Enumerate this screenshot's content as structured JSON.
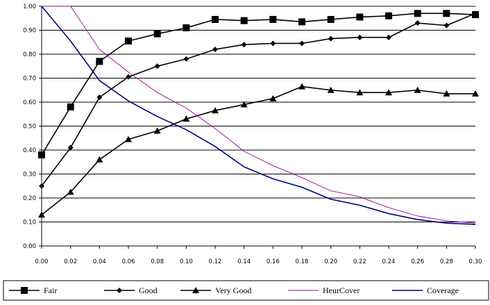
{
  "chart_data": {
    "type": "line",
    "title": "",
    "xlabel": "",
    "ylabel": "",
    "x": [
      0.0,
      0.02,
      0.04,
      0.06,
      0.08,
      0.1,
      0.12,
      0.14,
      0.16,
      0.18,
      0.2,
      0.22,
      0.24,
      0.26,
      0.28,
      0.3
    ],
    "x_tick_labels": [
      "0.00",
      "0.02",
      "0.04",
      "0.06",
      "0.08",
      "0.10",
      "0.12",
      "0.14",
      "0.16",
      "0.18",
      "0.20",
      "0.22",
      "0.24",
      "0.26",
      "0.28",
      "0.30"
    ],
    "ylim": [
      0,
      1
    ],
    "y_ticks": [
      0,
      0.1,
      0.2,
      0.3,
      0.4,
      0.5,
      0.6,
      0.7,
      0.8,
      0.9,
      1.0
    ],
    "y_tick_labels": [
      "0.00",
      "0.10",
      "0.20",
      "0.30",
      "0.40",
      "0.50",
      "0.60",
      "0.70",
      "0.80",
      "0.90",
      "1.00"
    ],
    "grid": "horizontal",
    "legend_position": "bottom",
    "series": [
      {
        "name": "Fair",
        "color": "#000000",
        "marker": "square",
        "values": [
          0.38,
          0.58,
          0.77,
          0.855,
          0.885,
          0.91,
          0.945,
          0.94,
          0.945,
          0.935,
          0.945,
          0.955,
          0.96,
          0.97,
          0.97,
          0.965
        ]
      },
      {
        "name": "Good",
        "color": "#000000",
        "marker": "diamond",
        "values": [
          0.25,
          0.41,
          0.62,
          0.705,
          0.75,
          0.78,
          0.82,
          0.84,
          0.845,
          0.845,
          0.865,
          0.87,
          0.87,
          0.93,
          0.92,
          0.97
        ]
      },
      {
        "name": "Very Good",
        "color": "#000000",
        "marker": "triangle",
        "values": [
          0.13,
          0.225,
          0.36,
          0.445,
          0.48,
          0.53,
          0.565,
          0.59,
          0.615,
          0.665,
          0.65,
          0.64,
          0.64,
          0.65,
          0.635,
          0.635
        ]
      },
      {
        "name": "HeurCover",
        "color": "#990099",
        "marker": "none",
        "values": [
          1.0,
          1.0,
          0.82,
          0.725,
          0.64,
          0.575,
          0.49,
          0.395,
          0.335,
          0.285,
          0.23,
          0.205,
          0.16,
          0.125,
          0.105,
          0.095
        ]
      },
      {
        "name": "Coverage",
        "color": "#000080",
        "marker": "none",
        "values": [
          1.0,
          0.855,
          0.69,
          0.605,
          0.54,
          0.485,
          0.415,
          0.33,
          0.28,
          0.245,
          0.195,
          0.17,
          0.135,
          0.11,
          0.095,
          0.09
        ]
      }
    ]
  }
}
